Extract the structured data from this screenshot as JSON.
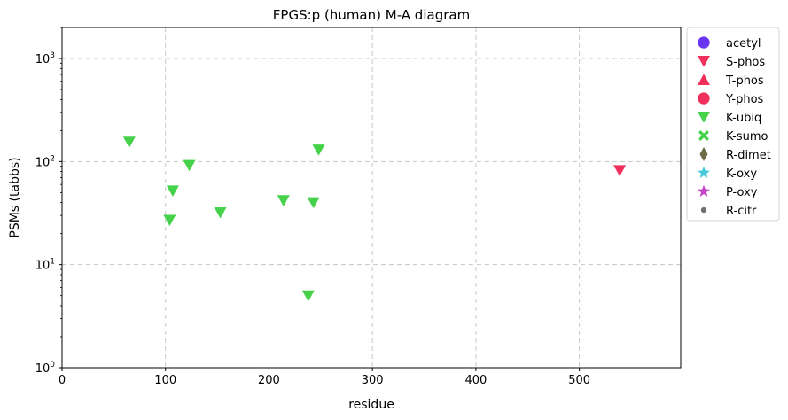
{
  "chart_data": {
    "type": "scatter",
    "title": "FPGS:p (human) M-A diagram",
    "xlabel": "residue",
    "ylabel": "PSMs (tabbs)",
    "xlim": [
      0,
      598
    ],
    "ylim": [
      1,
      2000
    ],
    "yscale": "log",
    "x_ticks": [
      0,
      100,
      200,
      300,
      400,
      500
    ],
    "y_ticks": [
      {
        "value": 1,
        "base": "10",
        "exp": "0"
      },
      {
        "value": 10,
        "base": "10",
        "exp": "1"
      },
      {
        "value": 100,
        "base": "10",
        "exp": "2"
      },
      {
        "value": 1000,
        "base": "10",
        "exp": "3"
      }
    ],
    "grid": true,
    "legend_position": "outside-right",
    "series": [
      {
        "name": "acetyl",
        "marker": "circle",
        "color": "#6a35f0",
        "points": []
      },
      {
        "name": "S-phos",
        "marker": "triangle-down",
        "color": "#f0305a",
        "points": [
          {
            "x": 539,
            "y": 82
          }
        ]
      },
      {
        "name": "T-phos",
        "marker": "triangle-up",
        "color": "#f0305a",
        "points": []
      },
      {
        "name": "Y-phos",
        "marker": "circle",
        "color": "#f0305a",
        "points": []
      },
      {
        "name": "K-ubiq",
        "marker": "triangle-down",
        "color": "#45d24a",
        "points": [
          {
            "x": 65,
            "y": 155
          },
          {
            "x": 104,
            "y": 27
          },
          {
            "x": 107,
            "y": 52
          },
          {
            "x": 123,
            "y": 92
          },
          {
            "x": 153,
            "y": 32
          },
          {
            "x": 214,
            "y": 42
          },
          {
            "x": 238,
            "y": 5
          },
          {
            "x": 243,
            "y": 40
          },
          {
            "x": 248,
            "y": 130
          }
        ]
      },
      {
        "name": "K-sumo",
        "marker": "x",
        "color": "#45d24a",
        "points": []
      },
      {
        "name": "R-dimet",
        "marker": "diamond",
        "color": "#6b6b45",
        "points": []
      },
      {
        "name": "K-oxy",
        "marker": "star",
        "color": "#45c8d8",
        "points": []
      },
      {
        "name": "P-oxy",
        "marker": "star",
        "color": "#c445c8",
        "points": []
      },
      {
        "name": "R-citr",
        "marker": "small-circle",
        "color": "#707070",
        "points": []
      }
    ]
  }
}
